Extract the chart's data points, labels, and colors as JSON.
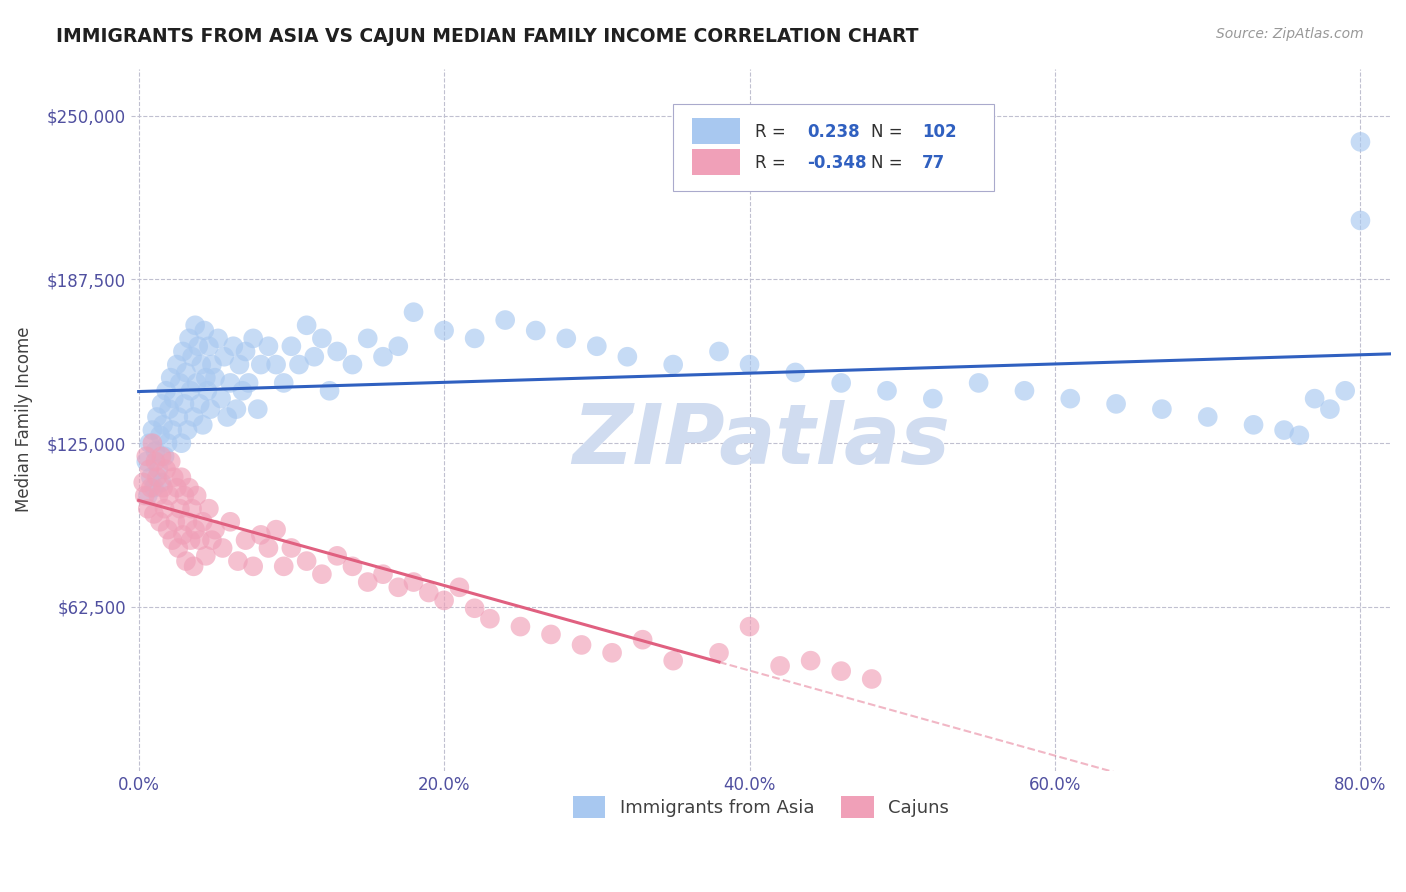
{
  "title": "IMMIGRANTS FROM ASIA VS CAJUN MEDIAN FAMILY INCOME CORRELATION CHART",
  "source_text": "Source: ZipAtlas.com",
  "ylabel": "Median Family Income",
  "xlim": [
    -0.005,
    0.82
  ],
  "ylim": [
    0,
    268000
  ],
  "yticks": [
    0,
    62500,
    125000,
    187500,
    250000
  ],
  "ytick_labels": [
    "",
    "$62,500",
    "$125,000",
    "$187,500",
    "$250,000"
  ],
  "xtick_labels": [
    "0.0%",
    "20.0%",
    "40.0%",
    "60.0%",
    "80.0%"
  ],
  "xticks": [
    0.0,
    0.2,
    0.4,
    0.6,
    0.8
  ],
  "blue_R": 0.238,
  "blue_N": 102,
  "pink_R": -0.348,
  "pink_N": 77,
  "blue_color": "#A8C8F0",
  "pink_color": "#F0A0B8",
  "blue_line_color": "#3060C0",
  "pink_line_color": "#E06080",
  "watermark": "ZIPatlas",
  "watermark_color": "#D0DCF0",
  "legend_label_blue": "Immigrants from Asia",
  "legend_label_pink": "Cajuns",
  "background_color": "#FFFFFF",
  "grid_color": "#C0C0D0",
  "title_color": "#202020",
  "axis_label_color": "#5050A0",
  "blue_scatter_x": [
    0.005,
    0.006,
    0.007,
    0.008,
    0.009,
    0.01,
    0.011,
    0.012,
    0.013,
    0.014,
    0.015,
    0.015,
    0.016,
    0.017,
    0.018,
    0.019,
    0.02,
    0.021,
    0.022,
    0.023,
    0.025,
    0.026,
    0.027,
    0.028,
    0.029,
    0.03,
    0.031,
    0.032,
    0.033,
    0.034,
    0.035,
    0.036,
    0.037,
    0.038,
    0.039,
    0.04,
    0.041,
    0.042,
    0.043,
    0.044,
    0.045,
    0.046,
    0.047,
    0.048,
    0.05,
    0.052,
    0.054,
    0.056,
    0.058,
    0.06,
    0.062,
    0.064,
    0.066,
    0.068,
    0.07,
    0.072,
    0.075,
    0.078,
    0.08,
    0.085,
    0.09,
    0.095,
    0.1,
    0.105,
    0.11,
    0.115,
    0.12,
    0.125,
    0.13,
    0.14,
    0.15,
    0.16,
    0.17,
    0.18,
    0.2,
    0.22,
    0.24,
    0.26,
    0.28,
    0.3,
    0.32,
    0.35,
    0.38,
    0.4,
    0.43,
    0.46,
    0.49,
    0.52,
    0.55,
    0.58,
    0.61,
    0.64,
    0.67,
    0.7,
    0.73,
    0.75,
    0.76,
    0.77,
    0.78,
    0.79,
    0.8,
    0.8
  ],
  "blue_scatter_y": [
    118000,
    105000,
    125000,
    112000,
    130000,
    108000,
    122000,
    135000,
    115000,
    128000,
    140000,
    110000,
    132000,
    120000,
    145000,
    125000,
    138000,
    150000,
    130000,
    142000,
    155000,
    135000,
    148000,
    125000,
    160000,
    140000,
    152000,
    130000,
    165000,
    145000,
    158000,
    135000,
    170000,
    148000,
    162000,
    140000,
    155000,
    132000,
    168000,
    150000,
    145000,
    162000,
    138000,
    155000,
    150000,
    165000,
    142000,
    158000,
    135000,
    148000,
    162000,
    138000,
    155000,
    145000,
    160000,
    148000,
    165000,
    138000,
    155000,
    162000,
    155000,
    148000,
    162000,
    155000,
    170000,
    158000,
    165000,
    145000,
    160000,
    155000,
    165000,
    158000,
    162000,
    175000,
    168000,
    165000,
    172000,
    168000,
    165000,
    162000,
    158000,
    155000,
    160000,
    155000,
    152000,
    148000,
    145000,
    142000,
    148000,
    145000,
    142000,
    140000,
    138000,
    135000,
    132000,
    130000,
    128000,
    142000,
    138000,
    145000,
    240000,
    210000
  ],
  "pink_scatter_x": [
    0.003,
    0.004,
    0.005,
    0.006,
    0.007,
    0.008,
    0.009,
    0.01,
    0.011,
    0.012,
    0.013,
    0.014,
    0.015,
    0.016,
    0.017,
    0.018,
    0.019,
    0.02,
    0.021,
    0.022,
    0.023,
    0.024,
    0.025,
    0.026,
    0.027,
    0.028,
    0.029,
    0.03,
    0.031,
    0.032,
    0.033,
    0.034,
    0.035,
    0.036,
    0.037,
    0.038,
    0.04,
    0.042,
    0.044,
    0.046,
    0.048,
    0.05,
    0.055,
    0.06,
    0.065,
    0.07,
    0.075,
    0.08,
    0.085,
    0.09,
    0.095,
    0.1,
    0.11,
    0.12,
    0.13,
    0.14,
    0.15,
    0.16,
    0.17,
    0.18,
    0.19,
    0.2,
    0.21,
    0.22,
    0.23,
    0.25,
    0.27,
    0.29,
    0.31,
    0.33,
    0.35,
    0.38,
    0.4,
    0.42,
    0.44,
    0.46,
    0.48
  ],
  "pink_scatter_y": [
    110000,
    105000,
    120000,
    100000,
    115000,
    108000,
    125000,
    98000,
    118000,
    112000,
    105000,
    95000,
    120000,
    108000,
    100000,
    115000,
    92000,
    105000,
    118000,
    88000,
    112000,
    95000,
    108000,
    85000,
    100000,
    112000,
    90000,
    105000,
    80000,
    95000,
    108000,
    88000,
    100000,
    78000,
    92000,
    105000,
    88000,
    95000,
    82000,
    100000,
    88000,
    92000,
    85000,
    95000,
    80000,
    88000,
    78000,
    90000,
    85000,
    92000,
    78000,
    85000,
    80000,
    75000,
    82000,
    78000,
    72000,
    75000,
    70000,
    72000,
    68000,
    65000,
    70000,
    62000,
    58000,
    55000,
    52000,
    48000,
    45000,
    50000,
    42000,
    45000,
    55000,
    40000,
    42000,
    38000,
    35000
  ]
}
